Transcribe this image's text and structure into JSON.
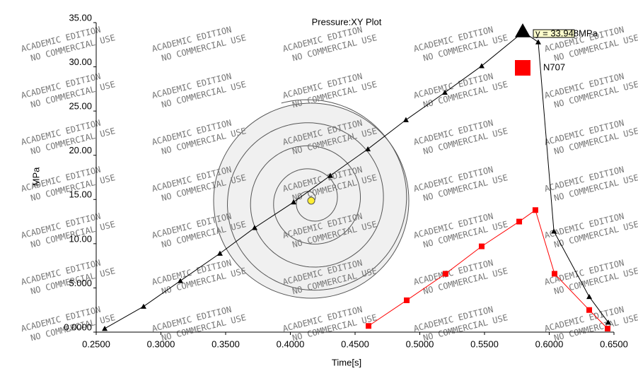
{
  "chart_data": {
    "type": "line",
    "title": "Pressure:XY Plot",
    "xlabel": "Time[s]",
    "ylabel": "MPa",
    "annotation": "y = 33.948MPa",
    "watermark": [
      "ACADEMIC EDITION",
      "NO COMMERCIAL USE"
    ],
    "xlim": [
      0.25,
      0.65
    ],
    "xticks": [
      {
        "value": 0.25,
        "label": "0.2500"
      },
      {
        "value": 0.3,
        "label": "0.3000"
      },
      {
        "value": 0.35,
        "label": "0.3500"
      },
      {
        "value": 0.4,
        "label": "0.4000"
      },
      {
        "value": 0.45,
        "label": "0.4500"
      },
      {
        "value": 0.5,
        "label": "0.5000"
      },
      {
        "value": 0.55,
        "label": "0.5500"
      },
      {
        "value": 0.6,
        "label": "0.6000"
      },
      {
        "value": 0.65,
        "label": "0.6500"
      }
    ],
    "ylim": [
      0,
      35
    ],
    "yticks": [
      {
        "value": 0,
        "label": "0.0000"
      },
      {
        "value": 5,
        "label": "5.000"
      },
      {
        "value": 10,
        "label": "10.00"
      },
      {
        "value": 15,
        "label": "15.00"
      },
      {
        "value": 20,
        "label": "20.00"
      },
      {
        "value": 25,
        "label": "25.00"
      },
      {
        "value": 30,
        "label": "30.00"
      },
      {
        "value": 35,
        "label": "35.00"
      }
    ],
    "series": [
      {
        "color": "#000000",
        "marker": "triangle",
        "x": [
          0.2566,
          0.2866,
          0.315,
          0.3456,
          0.3724,
          0.4025,
          0.4309,
          0.4599,
          0.4893,
          0.5194,
          0.5478,
          0.58,
          0.5915,
          0.6036,
          0.6309,
          0.6456
        ],
        "values": [
          0.4,
          2.9,
          5.8,
          8.9,
          11.8,
          14.7,
          17.7,
          20.7,
          24.0,
          27.1,
          30.1,
          33.948,
          32.8,
          11.4,
          4.0,
          1.1
        ]
      },
      {
        "name": "N707",
        "color": "#ff0000",
        "marker": "square",
        "x": [
          0.4604,
          0.4899,
          0.5199,
          0.5478,
          0.5768,
          0.5893,
          0.6041,
          0.6309,
          0.6451
        ],
        "values": [
          0.7,
          3.6,
          6.6,
          9.7,
          12.5,
          13.8,
          6.6,
          2.5,
          0.4
        ]
      }
    ]
  }
}
